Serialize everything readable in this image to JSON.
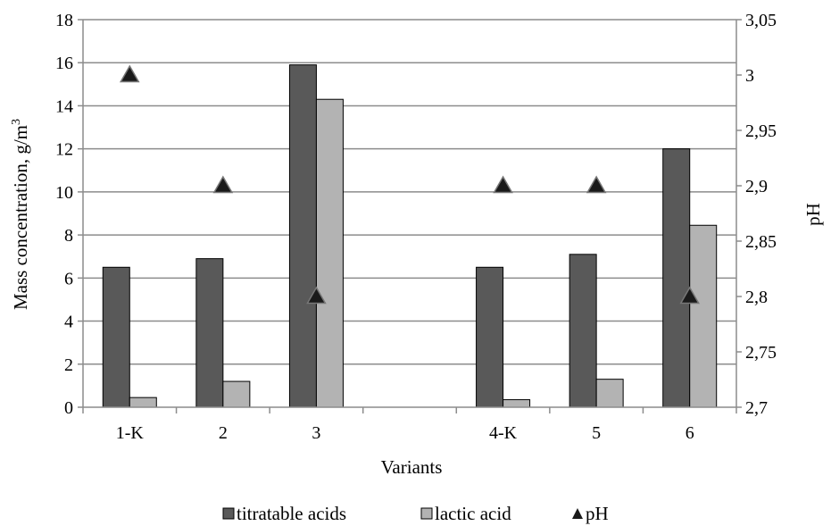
{
  "chart_data": {
    "type": "bar",
    "categories": [
      "1-K",
      "2",
      "3",
      "",
      "4-K",
      "5",
      "6"
    ],
    "series": [
      {
        "name": "titratable acids",
        "type": "bar",
        "axis": "left",
        "color": "#595959",
        "values": [
          6.5,
          6.9,
          15.9,
          null,
          6.5,
          7.1,
          12.0
        ]
      },
      {
        "name": "lactic acid",
        "type": "bar",
        "axis": "left",
        "color": "#b3b3b3",
        "values": [
          0.45,
          1.2,
          14.3,
          null,
          0.35,
          1.3,
          8.45
        ]
      },
      {
        "name": "pH",
        "type": "scatter",
        "marker": "triangle",
        "axis": "right",
        "color": "#1a1a1a",
        "values": [
          3.0,
          2.9,
          2.8,
          null,
          2.9,
          2.9,
          2.8
        ]
      }
    ],
    "xlabel": "Variants",
    "ylabel_left": "Mass concentration, g/m",
    "ylabel_left_sup": "3",
    "ylabel_right": "pH",
    "ylim_left": [
      0,
      18
    ],
    "ylim_right": [
      2.7,
      3.05
    ],
    "yticks_left": [
      "0",
      "2",
      "4",
      "6",
      "8",
      "10",
      "12",
      "14",
      "16",
      "18"
    ],
    "yticks_right": [
      "2,7",
      "2,75",
      "2,8",
      "2,85",
      "2,9",
      "2,95",
      "3",
      "3,05"
    ],
    "grid": true,
    "legend_position": "bottom"
  }
}
